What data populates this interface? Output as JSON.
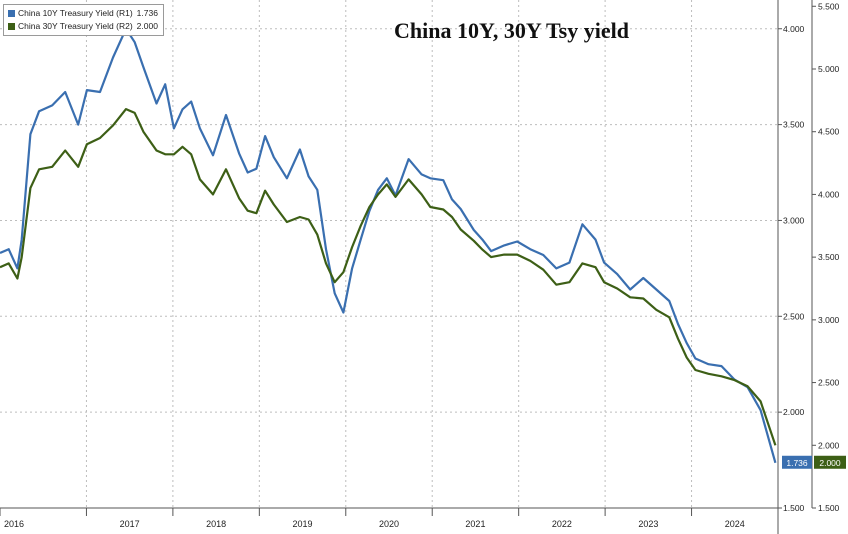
{
  "chart_data": {
    "type": "line",
    "title": "China 10Y, 30Y Tsy yield",
    "x_ticks": [
      "2016",
      "2017",
      "2018",
      "2019",
      "2020",
      "2021",
      "2022",
      "2023",
      "2024"
    ],
    "axes": {
      "R1": {
        "ticks": [
          "1.500",
          "2.000",
          "2.500",
          "3.000",
          "3.500",
          "4.000"
        ],
        "range": [
          1.5,
          4.15
        ]
      },
      "R2": {
        "ticks": [
          "1.500",
          "2.000",
          "2.500",
          "3.000",
          "3.500",
          "4.000",
          "4.500",
          "5.000",
          "5.500"
        ],
        "range": [
          1.5,
          5.55
        ]
      }
    },
    "grid": true,
    "legend_position": "top-left",
    "series": [
      {
        "name": "China 10Y Treasury Yield (R1)",
        "legend_value": "1.736",
        "last_value_label": "1.736",
        "axis": "R1",
        "color": "#3a6fb0",
        "x": [
          2016.0,
          2016.1,
          2016.2,
          2016.25,
          2016.35,
          2016.45,
          2016.6,
          2016.75,
          2016.9,
          2017.0,
          2017.15,
          2017.3,
          2017.45,
          2017.55,
          2017.65,
          2017.8,
          2017.9,
          2018.0,
          2018.1,
          2018.2,
          2018.3,
          2018.45,
          2018.6,
          2018.75,
          2018.85,
          2018.95,
          2019.05,
          2019.15,
          2019.3,
          2019.45,
          2019.55,
          2019.65,
          2019.75,
          2019.85,
          2019.95,
          2020.05,
          2020.15,
          2020.25,
          2020.35,
          2020.45,
          2020.55,
          2020.7,
          2020.85,
          2020.95,
          2021.1,
          2021.2,
          2021.3,
          2021.45,
          2021.55,
          2021.65,
          2021.8,
          2021.95,
          2022.1,
          2022.25,
          2022.4,
          2022.55,
          2022.7,
          2022.85,
          2022.95,
          2023.1,
          2023.25,
          2023.4,
          2023.55,
          2023.7,
          2023.8,
          2023.9,
          2024.0,
          2024.15,
          2024.3,
          2024.45,
          2024.6,
          2024.75,
          2024.92
        ],
        "values": [
          2.83,
          2.85,
          2.75,
          2.9,
          3.45,
          3.57,
          3.6,
          3.67,
          3.5,
          3.68,
          3.67,
          3.85,
          4.0,
          3.93,
          3.8,
          3.61,
          3.71,
          3.48,
          3.58,
          3.62,
          3.48,
          3.34,
          3.55,
          3.35,
          3.25,
          3.27,
          3.44,
          3.33,
          3.22,
          3.37,
          3.23,
          3.16,
          2.85,
          2.62,
          2.52,
          2.75,
          2.9,
          3.05,
          3.16,
          3.22,
          3.13,
          3.32,
          3.24,
          3.22,
          3.21,
          3.11,
          3.06,
          2.95,
          2.9,
          2.84,
          2.87,
          2.89,
          2.85,
          2.82,
          2.75,
          2.78,
          2.98,
          2.9,
          2.78,
          2.72,
          2.64,
          2.7,
          2.64,
          2.58,
          2.46,
          2.36,
          2.28,
          2.25,
          2.24,
          2.17,
          2.13,
          2.01,
          1.736
        ]
      },
      {
        "name": "China 30Y Treasury Yield (R2)",
        "legend_value": "2.000",
        "last_value_label": "2.000",
        "axis": "R2",
        "color": "#3d5f16",
        "x": [
          2016.0,
          2016.1,
          2016.2,
          2016.25,
          2016.35,
          2016.45,
          2016.6,
          2016.75,
          2016.9,
          2017.0,
          2017.15,
          2017.3,
          2017.45,
          2017.55,
          2017.65,
          2017.8,
          2017.9,
          2018.0,
          2018.1,
          2018.2,
          2018.3,
          2018.45,
          2018.6,
          2018.75,
          2018.85,
          2018.95,
          2019.05,
          2019.15,
          2019.3,
          2019.45,
          2019.55,
          2019.65,
          2019.75,
          2019.85,
          2019.95,
          2020.05,
          2020.15,
          2020.25,
          2020.35,
          2020.45,
          2020.55,
          2020.7,
          2020.85,
          2020.95,
          2021.1,
          2021.2,
          2021.3,
          2021.45,
          2021.55,
          2021.65,
          2021.8,
          2021.95,
          2022.1,
          2022.25,
          2022.4,
          2022.55,
          2022.7,
          2022.85,
          2022.95,
          2023.1,
          2023.25,
          2023.4,
          2023.55,
          2023.7,
          2023.8,
          2023.9,
          2024.0,
          2024.15,
          2024.3,
          2024.45,
          2024.6,
          2024.75,
          2024.92
        ],
        "values": [
          3.42,
          3.45,
          3.33,
          3.5,
          4.05,
          4.2,
          4.22,
          4.35,
          4.22,
          4.4,
          4.45,
          4.55,
          4.68,
          4.65,
          4.5,
          4.35,
          4.32,
          4.32,
          4.38,
          4.32,
          4.12,
          4.0,
          4.2,
          3.97,
          3.87,
          3.85,
          4.03,
          3.92,
          3.78,
          3.82,
          3.8,
          3.68,
          3.45,
          3.3,
          3.38,
          3.58,
          3.75,
          3.9,
          4.0,
          4.08,
          3.98,
          4.12,
          4.0,
          3.9,
          3.88,
          3.82,
          3.72,
          3.63,
          3.56,
          3.5,
          3.52,
          3.52,
          3.47,
          3.4,
          3.28,
          3.3,
          3.45,
          3.42,
          3.3,
          3.25,
          3.18,
          3.17,
          3.08,
          3.02,
          2.85,
          2.7,
          2.6,
          2.57,
          2.55,
          2.52,
          2.47,
          2.35,
          2.0
        ]
      }
    ]
  }
}
